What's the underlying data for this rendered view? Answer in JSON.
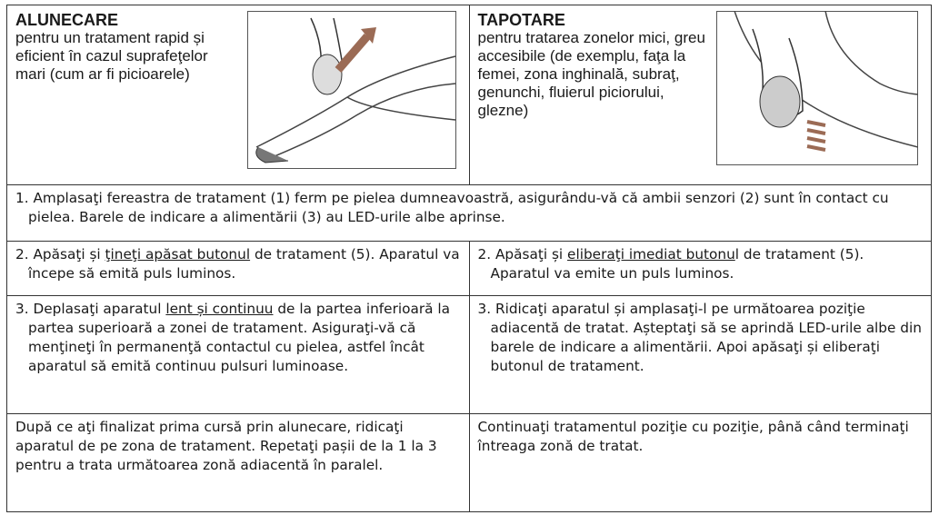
{
  "table": {
    "rows": [
      [
        {
          "title": "ALUNECARE",
          "text": "pentru un tratament rapid și eficient în cazul suprafeţelor mari (cum ar fi picioarele)"
        },
        {
          "title": "TAPOTARE",
          "text": "pentru tratarea zonelor mici, greu accesibile (de exemplu, faţa la femei, zona inghinală, subraţ, genunchi, fluierul piciorului, glezne)"
        }
      ],
      [
        {
          "text": "1. Amplasaţi fereastra de tratament (1) ferm pe pielea dumneavoastră, asigurându-vă că ambii senzori (2) sunt în contact cu pielea. Barele de indicare a alimentării (3) au LED-urile albe aprinse."
        }
      ],
      [
        {
          "before": "2. Apăsaţi și ",
          "underlined": "ţineţi apăsat butonul",
          "after": " de tratament (5). Aparatul va începe să emită puls luminos."
        },
        {
          "before": "2.  Apăsaţi și ",
          "underlined": "eliberaţi imediat butonu",
          "after": "l de tratament (5). Aparatul va emite un puls luminos."
        }
      ],
      [
        {
          "before": "3. Deplasaţi aparatul ",
          "underlined": "lent și continuu",
          "after": " de la partea inferioară la partea superioară a zonei de tratament. Asiguraţi-vă că menţineţi în permanenţă contactul cu pielea, astfel încât aparatul să emită continuu pulsuri luminoase."
        },
        {
          "text": "3.  Ridicaţi aparatul și amplasaţi-l pe următoarea poziţie adiacentă de tratat. Așteptaţi să se aprindă LED-urile albe din barele de indicare a alimentării. Apoi apăsaţi și eliberaţi butonul de tratament."
        }
      ],
      [
        {
          "text": "După ce aţi finalizat prima cursă prin alunecare, ridicaţi aparatul de pe zona de tratament. Repetaţi pașii de la 1 la 3 pentru a trata următoarea zonă adiacentă în paralel."
        },
        {
          "text": "Continuaţi tratamentul poziţie cu poziţie, până când terminaţi întreaga zonă de tratat."
        }
      ]
    ]
  }
}
